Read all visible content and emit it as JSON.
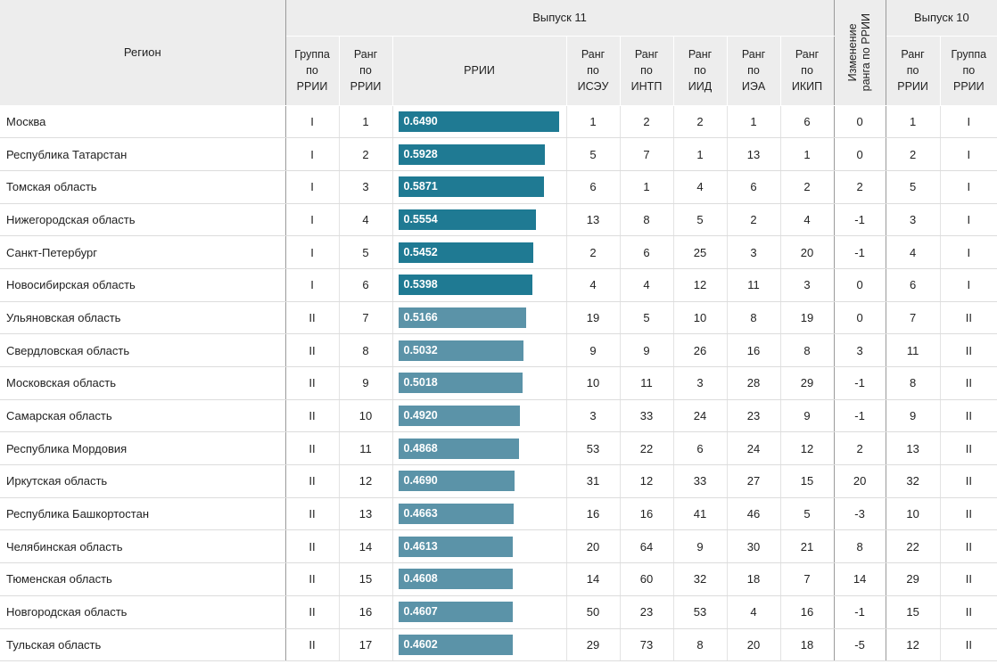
{
  "header": {
    "region": "Регион",
    "issue11": "Выпуск 11",
    "issue10": "Выпуск 10",
    "group_rrii": [
      "Группа",
      "по",
      "РРИИ"
    ],
    "rank_rrii": [
      "Ранг",
      "по",
      "РРИИ"
    ],
    "rrii": "РРИИ",
    "rank_iseu": [
      "Ранг",
      "по",
      "ИСЭУ"
    ],
    "rank_intp": [
      "Ранг",
      "по",
      "ИНТП"
    ],
    "rank_iid": [
      "Ранг",
      "по",
      "ИИД"
    ],
    "rank_iea": [
      "Ранг",
      "по",
      "ИЭА"
    ],
    "rank_ikip": [
      "Ранг",
      "по",
      "ИКИП"
    ],
    "rank_change": [
      "Изменение",
      "ранга по РРИИ"
    ],
    "rank_rrii_10": [
      "Ранг",
      "по",
      "РРИИ"
    ],
    "group_rrii_10": [
      "Группа",
      "по",
      "РРИИ"
    ]
  },
  "colors": {
    "group_I": "#1f7a93",
    "group_II": "#5b93a8"
  },
  "bar_max": 0.649,
  "rows": [
    {
      "region": "Москва",
      "group": "I",
      "rank": "1",
      "rrii": "0.6490",
      "iseu": "1",
      "intp": "2",
      "iid": "2",
      "iea": "1",
      "ikip": "6",
      "change": "0",
      "rank10": "1",
      "group10": "I"
    },
    {
      "region": "Республика Татарстан",
      "group": "I",
      "rank": "2",
      "rrii": "0.5928",
      "iseu": "5",
      "intp": "7",
      "iid": "1",
      "iea": "13",
      "ikip": "1",
      "change": "0",
      "rank10": "2",
      "group10": "I"
    },
    {
      "region": "Томская область",
      "group": "I",
      "rank": "3",
      "rrii": "0.5871",
      "iseu": "6",
      "intp": "1",
      "iid": "4",
      "iea": "6",
      "ikip": "2",
      "change": "2",
      "rank10": "5",
      "group10": "I"
    },
    {
      "region": "Нижегородская область",
      "group": "I",
      "rank": "4",
      "rrii": "0.5554",
      "iseu": "13",
      "intp": "8",
      "iid": "5",
      "iea": "2",
      "ikip": "4",
      "change": "-1",
      "rank10": "3",
      "group10": "I"
    },
    {
      "region": "Санкт-Петербург",
      "group": "I",
      "rank": "5",
      "rrii": "0.5452",
      "iseu": "2",
      "intp": "6",
      "iid": "25",
      "iea": "3",
      "ikip": "20",
      "change": "-1",
      "rank10": "4",
      "group10": "I"
    },
    {
      "region": "Новосибирская область",
      "group": "I",
      "rank": "6",
      "rrii": "0.5398",
      "iseu": "4",
      "intp": "4",
      "iid": "12",
      "iea": "11",
      "ikip": "3",
      "change": "0",
      "rank10": "6",
      "group10": "I"
    },
    {
      "region": "Ульяновская область",
      "group": "II",
      "rank": "7",
      "rrii": "0.5166",
      "iseu": "19",
      "intp": "5",
      "iid": "10",
      "iea": "8",
      "ikip": "19",
      "change": "0",
      "rank10": "7",
      "group10": "II"
    },
    {
      "region": "Свердловская область",
      "group": "II",
      "rank": "8",
      "rrii": "0.5032",
      "iseu": "9",
      "intp": "9",
      "iid": "26",
      "iea": "16",
      "ikip": "8",
      "change": "3",
      "rank10": "11",
      "group10": "II"
    },
    {
      "region": "Московская область",
      "group": "II",
      "rank": "9",
      "rrii": "0.5018",
      "iseu": "10",
      "intp": "11",
      "iid": "3",
      "iea": "28",
      "ikip": "29",
      "change": "-1",
      "rank10": "8",
      "group10": "II"
    },
    {
      "region": "Самарская область",
      "group": "II",
      "rank": "10",
      "rrii": "0.4920",
      "iseu": "3",
      "intp": "33",
      "iid": "24",
      "iea": "23",
      "ikip": "9",
      "change": "-1",
      "rank10": "9",
      "group10": "II"
    },
    {
      "region": "Республика Мордовия",
      "group": "II",
      "rank": "11",
      "rrii": "0.4868",
      "iseu": "53",
      "intp": "22",
      "iid": "6",
      "iea": "24",
      "ikip": "12",
      "change": "2",
      "rank10": "13",
      "group10": "II"
    },
    {
      "region": "Иркутская область",
      "group": "II",
      "rank": "12",
      "rrii": "0.4690",
      "iseu": "31",
      "intp": "12",
      "iid": "33",
      "iea": "27",
      "ikip": "15",
      "change": "20",
      "rank10": "32",
      "group10": "II"
    },
    {
      "region": "Республика Башкортостан",
      "group": "II",
      "rank": "13",
      "rrii": "0.4663",
      "iseu": "16",
      "intp": "16",
      "iid": "41",
      "iea": "46",
      "ikip": "5",
      "change": "-3",
      "rank10": "10",
      "group10": "II"
    },
    {
      "region": "Челябинская область",
      "group": "II",
      "rank": "14",
      "rrii": "0.4613",
      "iseu": "20",
      "intp": "64",
      "iid": "9",
      "iea": "30",
      "ikip": "21",
      "change": "8",
      "rank10": "22",
      "group10": "II"
    },
    {
      "region": "Тюменская область",
      "group": "II",
      "rank": "15",
      "rrii": "0.4608",
      "iseu": "14",
      "intp": "60",
      "iid": "32",
      "iea": "18",
      "ikip": "7",
      "change": "14",
      "rank10": "29",
      "group10": "II"
    },
    {
      "region": "Новгородская область",
      "group": "II",
      "rank": "16",
      "rrii": "0.4607",
      "iseu": "50",
      "intp": "23",
      "iid": "53",
      "iea": "4",
      "ikip": "16",
      "change": "-1",
      "rank10": "15",
      "group10": "II"
    },
    {
      "region": "Тульская область",
      "group": "II",
      "rank": "17",
      "rrii": "0.4602",
      "iseu": "29",
      "intp": "73",
      "iid": "8",
      "iea": "20",
      "ikip": "18",
      "change": "-5",
      "rank10": "12",
      "group10": "II"
    }
  ]
}
